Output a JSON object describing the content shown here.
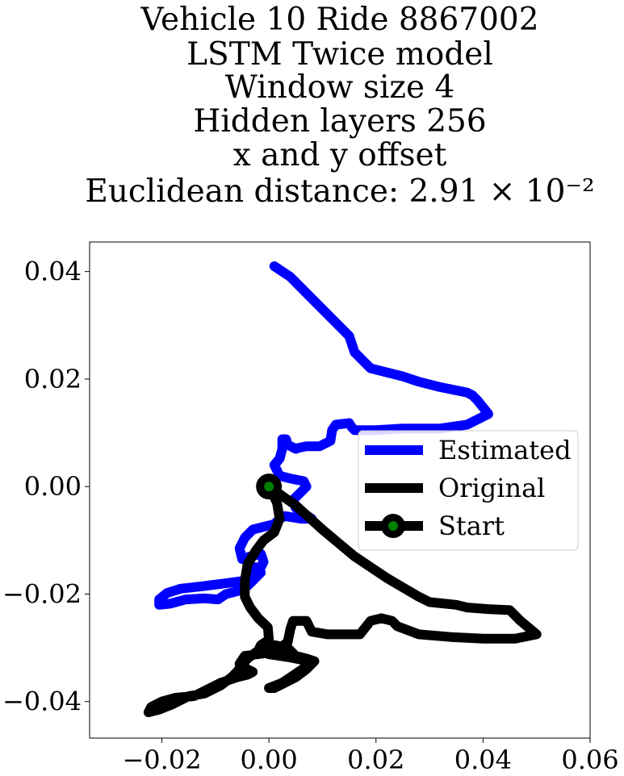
{
  "chart_data": {
    "type": "line",
    "title_lines": [
      "Vehicle 10 Ride 8867002",
      "LSTM Twice model",
      "Window size 4",
      "Hidden layers 256",
      "x and y offset",
      "Euclidean distance: 2.91 × 10⁻²"
    ],
    "xlabel": "",
    "ylabel": "",
    "xlim": [
      -0.0335,
      0.06
    ],
    "ylim": [
      -0.0468,
      0.0455
    ],
    "x_ticks": [
      -0.02,
      0.0,
      0.02,
      0.04,
      0.06
    ],
    "x_tick_labels": [
      "−0.02",
      "0.00",
      "0.02",
      "0.04",
      "0.06"
    ],
    "y_ticks": [
      0.04,
      0.02,
      0.0,
      -0.02,
      -0.04
    ],
    "y_tick_labels": [
      "0.04",
      "0.02",
      "0.00",
      "−0.02",
      "−0.04"
    ],
    "grid": false,
    "legend_position": "center-right",
    "series": [
      {
        "name": "Estimated",
        "color": "#0000ff",
        "points": [
          [
            0.001,
            0.041
          ],
          [
            0.004,
            0.039
          ],
          [
            0.008,
            0.035
          ],
          [
            0.012,
            0.031
          ],
          [
            0.015,
            0.028
          ],
          [
            0.016,
            0.025
          ],
          [
            0.019,
            0.022
          ],
          [
            0.021,
            0.0215
          ],
          [
            0.025,
            0.0205
          ],
          [
            0.028,
            0.0195
          ],
          [
            0.032,
            0.0185
          ],
          [
            0.037,
            0.0175
          ],
          [
            0.038,
            0.017
          ],
          [
            0.039,
            0.016
          ],
          [
            0.041,
            0.0135
          ],
          [
            0.037,
            0.0115
          ],
          [
            0.032,
            0.0108
          ],
          [
            0.025,
            0.0108
          ],
          [
            0.02,
            0.0105
          ],
          [
            0.016,
            0.0105
          ],
          [
            0.0155,
            0.011
          ],
          [
            0.015,
            0.0118
          ],
          [
            0.0125,
            0.0115
          ],
          [
            0.0118,
            0.0105
          ],
          [
            0.0115,
            0.0085
          ],
          [
            0.0095,
            0.0075
          ],
          [
            0.007,
            0.0075
          ],
          [
            0.0055,
            0.0072
          ],
          [
            0.005,
            0.007
          ],
          [
            0.0035,
            0.0078
          ],
          [
            0.0032,
            0.0088
          ],
          [
            0.0025,
            0.0088
          ],
          [
            0.0025,
            0.007
          ],
          [
            0.002,
            0.0052
          ],
          [
            0.001,
            0.004
          ],
          [
            0.002,
            0.002
          ],
          [
            0.004,
            0.0015
          ],
          [
            0.0065,
            0.001
          ],
          [
            0.007,
            0.0
          ],
          [
            0.0055,
            -0.0015
          ],
          [
            0.0045,
            -0.0025
          ],
          [
            0.005,
            -0.004
          ],
          [
            0.008,
            -0.006
          ],
          [
            0.006,
            -0.006
          ],
          [
            0.003,
            -0.0055
          ],
          [
            0.002,
            -0.006
          ],
          [
            0.001,
            -0.007
          ],
          [
            -0.001,
            -0.0075
          ],
          [
            -0.003,
            -0.008
          ],
          [
            -0.0045,
            -0.0095
          ],
          [
            -0.0055,
            -0.0115
          ],
          [
            -0.005,
            -0.0135
          ],
          [
            -0.0035,
            -0.013
          ],
          [
            -0.0015,
            -0.0125
          ],
          [
            -0.001,
            -0.014
          ],
          [
            -0.002,
            -0.016
          ],
          [
            -0.0025,
            -0.015
          ],
          [
            -0.003,
            -0.016
          ],
          [
            -0.0045,
            -0.0175
          ],
          [
            -0.008,
            -0.018
          ],
          [
            -0.012,
            -0.0185
          ],
          [
            -0.0165,
            -0.019
          ],
          [
            -0.019,
            -0.0198
          ],
          [
            -0.0205,
            -0.021
          ],
          [
            -0.0205,
            -0.022
          ],
          [
            -0.0185,
            -0.0218
          ],
          [
            -0.0155,
            -0.021
          ],
          [
            -0.012,
            -0.0208
          ],
          [
            -0.0095,
            -0.021
          ],
          [
            -0.008,
            -0.02
          ],
          [
            -0.006,
            -0.0195
          ],
          [
            -0.004,
            -0.0185
          ],
          [
            -0.0025,
            -0.017
          ],
          [
            -0.0015,
            -0.016
          ]
        ]
      },
      {
        "name": "Original",
        "color": "#000000",
        "points": [
          [
            0.0,
            0.0
          ],
          [
            0.005,
            -0.0035
          ],
          [
            0.01,
            -0.008
          ],
          [
            0.016,
            -0.013
          ],
          [
            0.022,
            -0.017
          ],
          [
            0.028,
            -0.0205
          ],
          [
            0.03,
            -0.0215
          ],
          [
            0.035,
            -0.022
          ],
          [
            0.037,
            -0.0225
          ],
          [
            0.041,
            -0.0228
          ],
          [
            0.045,
            -0.023
          ],
          [
            0.047,
            -0.025
          ],
          [
            0.05,
            -0.0275
          ],
          [
            0.046,
            -0.0283
          ],
          [
            0.04,
            -0.0283
          ],
          [
            0.034,
            -0.028
          ],
          [
            0.028,
            -0.0275
          ],
          [
            0.024,
            -0.026
          ],
          [
            0.023,
            -0.025
          ],
          [
            0.021,
            -0.0245
          ],
          [
            0.019,
            -0.025
          ],
          [
            0.017,
            -0.0275
          ],
          [
            0.013,
            -0.0275
          ],
          [
            0.011,
            -0.0275
          ],
          [
            0.008,
            -0.027
          ],
          [
            0.007,
            -0.025
          ],
          [
            0.0045,
            -0.025
          ],
          [
            0.004,
            -0.0265
          ],
          [
            0.0035,
            -0.029
          ],
          [
            0.002,
            -0.03
          ],
          [
            -0.0005,
            -0.031
          ],
          [
            -0.0045,
            -0.0315
          ],
          [
            -0.0055,
            -0.033
          ],
          [
            -0.004,
            -0.034
          ],
          [
            -0.003,
            -0.0345
          ],
          [
            -0.004,
            -0.035
          ],
          [
            -0.006,
            -0.0355
          ],
          [
            -0.009,
            -0.0365
          ],
          [
            -0.012,
            -0.038
          ],
          [
            -0.014,
            -0.039
          ],
          [
            -0.0175,
            -0.0393
          ],
          [
            -0.02,
            -0.04
          ],
          [
            -0.022,
            -0.041
          ],
          [
            -0.0225,
            -0.042
          ],
          [
            -0.0205,
            -0.0415
          ],
          [
            -0.018,
            -0.0405
          ],
          [
            -0.015,
            -0.039
          ],
          [
            -0.012,
            -0.0385
          ],
          [
            -0.009,
            -0.037
          ],
          [
            -0.007,
            -0.0355
          ],
          [
            -0.006,
            -0.0345
          ],
          [
            -0.004,
            -0.032
          ],
          [
            -0.002,
            -0.0305
          ],
          [
            0.001,
            -0.0295
          ],
          [
            0.0035,
            -0.03
          ],
          [
            0.005,
            -0.0315
          ],
          [
            0.007,
            -0.032
          ],
          [
            0.0085,
            -0.0325
          ],
          [
            0.007,
            -0.034
          ],
          [
            0.005,
            -0.0355
          ],
          [
            0.003,
            -0.0365
          ],
          [
            0.001,
            -0.0375
          ],
          [
            0.0,
            -0.0375
          ],
          [
            0.0025,
            -0.0365
          ],
          [
            0.004,
            -0.0355
          ],
          [
            0.0055,
            -0.0345
          ],
          [
            0.007,
            -0.0335
          ],
          [
            0.008,
            -0.033
          ],
          [
            0.006,
            -0.0322
          ],
          [
            0.004,
            -0.0318
          ],
          [
            0.002,
            -0.0315
          ],
          [
            0.0,
            -0.0312
          ],
          [
            -0.002,
            -0.0305
          ],
          [
            -0.0015,
            -0.0295
          ],
          [
            0.0,
            -0.0285
          ],
          [
            -0.0002,
            -0.0262
          ],
          [
            -0.002,
            -0.0245
          ],
          [
            -0.0035,
            -0.0225
          ],
          [
            -0.0045,
            -0.0205
          ],
          [
            -0.0045,
            -0.0175
          ],
          [
            -0.004,
            -0.0145
          ],
          [
            -0.0025,
            -0.012
          ],
          [
            -0.001,
            -0.01
          ],
          [
            0.001,
            -0.0085
          ],
          [
            0.002,
            -0.006
          ],
          [
            0.0015,
            -0.003
          ],
          [
            0.0,
            0.0
          ]
        ]
      }
    ],
    "start_marker": {
      "name": "Start",
      "x": 0.0,
      "y": 0.0,
      "edge_color": "#000000",
      "fill_color": "#008000"
    }
  }
}
